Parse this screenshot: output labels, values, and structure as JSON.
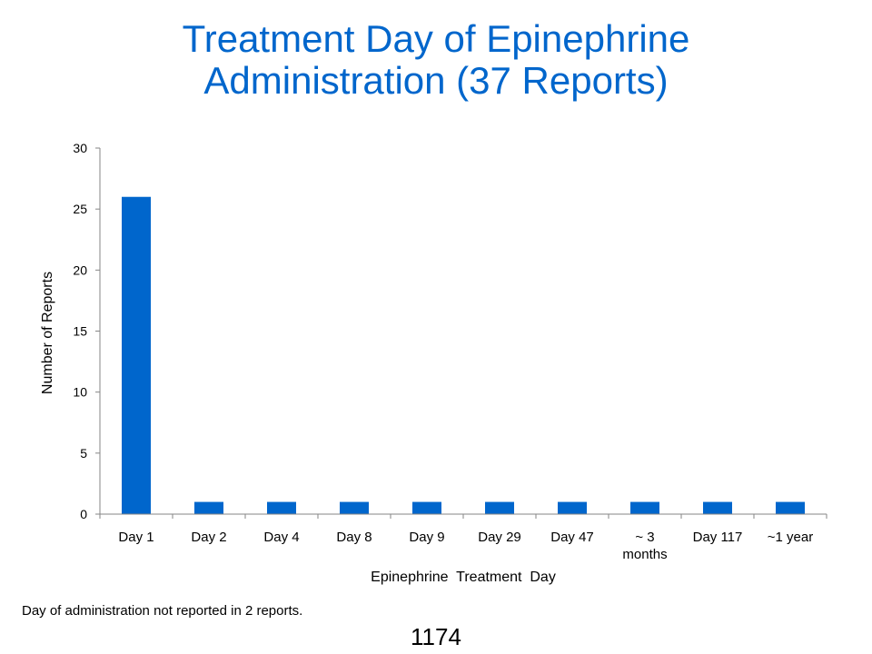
{
  "slide": {
    "title_line1": "Treatment Day of Epinephrine",
    "title_line2": "Administration (37 Reports)",
    "footnote": "Day of administration not reported in 2 reports.",
    "page_number": "1174"
  },
  "colors": {
    "title": "#0066cc",
    "bar": "#0066cc",
    "axis": "#868686"
  },
  "chart_data": {
    "type": "bar",
    "categories": [
      "Day 1",
      "Day 2",
      "Day 4",
      "Day 8",
      "Day 9",
      "Day 29",
      "Day 47",
      "~ 3 months",
      "Day 117",
      "~1 year"
    ],
    "category_lines": [
      [
        "Day 1"
      ],
      [
        "Day 2"
      ],
      [
        "Day 4"
      ],
      [
        "Day 8"
      ],
      [
        "Day 9"
      ],
      [
        "Day 29"
      ],
      [
        "Day 47"
      ],
      [
        "~ 3",
        "months"
      ],
      [
        "Day 117"
      ],
      [
        "~1 year"
      ]
    ],
    "values": [
      26,
      1,
      1,
      1,
      1,
      1,
      1,
      1,
      1,
      1
    ],
    "xlabel": "Epinephrine  Treatment  Day",
    "ylabel": "Number  of Reports",
    "ylim": [
      0,
      30
    ],
    "yticks": [
      0,
      5,
      10,
      15,
      20,
      25,
      30
    ],
    "grid": false,
    "legend": "none"
  }
}
